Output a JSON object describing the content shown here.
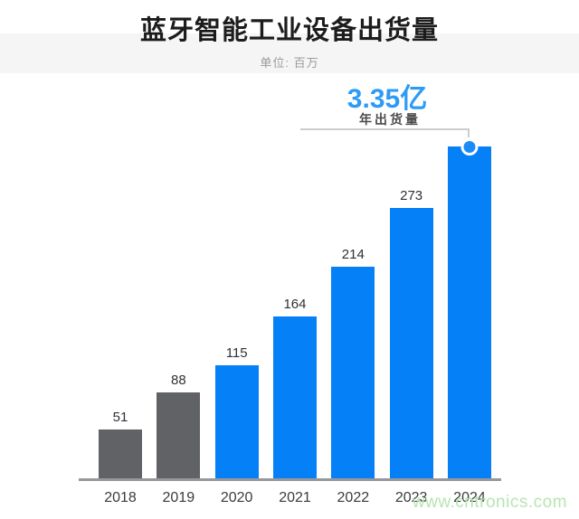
{
  "header": {
    "title": "蓝牙智能工业设备出货量",
    "subtitle": "单位: 百万"
  },
  "annotation": {
    "value": "3.35亿",
    "label": "年出货量"
  },
  "watermark": "www.cntronics.com",
  "colors": {
    "bar_blue": "#0580f7",
    "bar_gray": "#616266",
    "accent_blue": "#2d9bf5",
    "marker_blue": "#1a8cf8",
    "band_bg": "#f5f5f6",
    "axis": "#97989c",
    "leader_line": "#cccccc",
    "watermark_green": "#b7e5b1"
  },
  "chart_data": {
    "type": "bar",
    "title": "蓝牙智能工业设备出货量",
    "unit_note": "单位: 百万",
    "categories": [
      "2018",
      "2019",
      "2020",
      "2021",
      "2022",
      "2023",
      "2024"
    ],
    "values": [
      51,
      88,
      115,
      164,
      214,
      273,
      335
    ],
    "value_labels": [
      "51",
      "88",
      "115",
      "164",
      "214",
      "273",
      ""
    ],
    "bar_colors": [
      "#616266",
      "#616266",
      "#0580f7",
      "#0580f7",
      "#0580f7",
      "#0580f7",
      "#0580f7"
    ],
    "highlight": {
      "category": "2024",
      "value_text": "3.35亿",
      "label": "年出货量",
      "marker": "circle-on-bar-top"
    },
    "ylim": [
      0,
      335
    ],
    "grid": false,
    "legend": false,
    "orientation": "vertical"
  }
}
